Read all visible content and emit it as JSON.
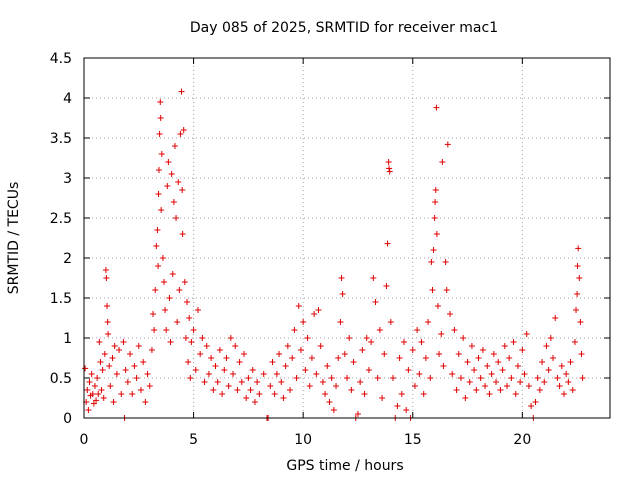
{
  "chart_data": {
    "type": "scatter",
    "title": "Day 085 of 2025, SRMTID for receiver mac1",
    "xlabel": "GPS time / hours",
    "ylabel": "SRMTID / TECUs",
    "xlim": [
      0,
      24
    ],
    "ylim": [
      0,
      4.5
    ],
    "xticks": [
      0,
      5,
      10,
      15,
      20
    ],
    "xtick_labels": [
      "0",
      "5",
      "10",
      "15",
      "20"
    ],
    "yticks": [
      0,
      0.5,
      1,
      1.5,
      2,
      2.5,
      3,
      3.5,
      4,
      4.5
    ],
    "ytick_labels": [
      "0",
      "0.5",
      "1",
      "1.5",
      "2",
      "2.5",
      "3",
      "3.5",
      "4",
      "4.5"
    ],
    "grid": true,
    "marker": "+",
    "color": "#e00000",
    "series": [
      {
        "name": "SRMTID",
        "points": [
          [
            0.05,
            0.62
          ],
          [
            0.1,
            0.2
          ],
          [
            0.15,
            0.35
          ],
          [
            0.2,
            0.1
          ],
          [
            0.25,
            0.45
          ],
          [
            0.3,
            0.28
          ],
          [
            0.35,
            0.55
          ],
          [
            0.4,
            0.3
          ],
          [
            0.45,
            0.18
          ],
          [
            0.5,
            0.4
          ],
          [
            0.55,
            0.22
          ],
          [
            0.6,
            0.5
          ],
          [
            0.65,
            0.3
          ],
          [
            0.7,
            0.95
          ],
          [
            0.75,
            0.7
          ],
          [
            0.8,
            0.35
          ],
          [
            0.85,
            0.6
          ],
          [
            0.9,
            0.25
          ],
          [
            0.95,
            0.8
          ],
          [
            1.0,
            1.85
          ],
          [
            1.02,
            1.75
          ],
          [
            1.05,
            1.4
          ],
          [
            1.08,
            1.2
          ],
          [
            1.1,
            1.05
          ],
          [
            1.15,
            0.65
          ],
          [
            1.2,
            0.4
          ],
          [
            1.3,
            0.75
          ],
          [
            1.35,
            0.2
          ],
          [
            1.4,
            0.9
          ],
          [
            1.5,
            0.55
          ],
          [
            1.6,
            0.85
          ],
          [
            1.7,
            0.3
          ],
          [
            1.8,
            0.95
          ],
          [
            1.85,
            0.0
          ],
          [
            1.9,
            0.6
          ],
          [
            2.0,
            0.45
          ],
          [
            2.1,
            0.8
          ],
          [
            2.2,
            0.3
          ],
          [
            2.3,
            0.65
          ],
          [
            2.4,
            0.5
          ],
          [
            2.5,
            0.9
          ],
          [
            2.6,
            0.35
          ],
          [
            2.7,
            0.7
          ],
          [
            2.8,
            0.2
          ],
          [
            2.9,
            0.55
          ],
          [
            3.0,
            0.4
          ],
          [
            3.1,
            0.85
          ],
          [
            3.15,
            1.3
          ],
          [
            3.2,
            1.1
          ],
          [
            3.25,
            1.6
          ],
          [
            3.3,
            2.15
          ],
          [
            3.35,
            2.35
          ],
          [
            3.38,
            1.9
          ],
          [
            3.4,
            2.8
          ],
          [
            3.42,
            3.1
          ],
          [
            3.45,
            3.55
          ],
          [
            3.48,
            3.95
          ],
          [
            3.5,
            3.75
          ],
          [
            3.52,
            2.6
          ],
          [
            3.55,
            3.3
          ],
          [
            3.6,
            2.0
          ],
          [
            3.65,
            1.7
          ],
          [
            3.7,
            1.35
          ],
          [
            3.75,
            1.1
          ],
          [
            3.8,
            2.9
          ],
          [
            3.85,
            3.2
          ],
          [
            3.9,
            1.5
          ],
          [
            3.95,
            0.95
          ],
          [
            4.0,
            3.05
          ],
          [
            4.05,
            1.8
          ],
          [
            4.1,
            2.7
          ],
          [
            4.15,
            3.4
          ],
          [
            4.2,
            2.5
          ],
          [
            4.25,
            1.2
          ],
          [
            4.3,
            2.95
          ],
          [
            4.35,
            1.6
          ],
          [
            4.4,
            3.55
          ],
          [
            4.45,
            4.08
          ],
          [
            4.48,
            2.85
          ],
          [
            4.5,
            2.3
          ],
          [
            4.55,
            3.6
          ],
          [
            4.6,
            1.7
          ],
          [
            4.65,
            1.0
          ],
          [
            4.7,
            1.45
          ],
          [
            4.75,
            0.7
          ],
          [
            4.8,
            1.25
          ],
          [
            4.85,
            0.5
          ],
          [
            4.9,
            0.95
          ],
          [
            5.0,
            1.1
          ],
          [
            5.1,
            0.6
          ],
          [
            5.2,
            1.35
          ],
          [
            5.3,
            0.8
          ],
          [
            5.4,
            1.0
          ],
          [
            5.5,
            0.45
          ],
          [
            5.6,
            0.9
          ],
          [
            5.7,
            0.55
          ],
          [
            5.8,
            0.75
          ],
          [
            5.9,
            0.35
          ],
          [
            6.0,
            0.65
          ],
          [
            6.1,
            0.45
          ],
          [
            6.2,
            0.85
          ],
          [
            6.3,
            0.3
          ],
          [
            6.4,
            0.6
          ],
          [
            6.5,
            0.75
          ],
          [
            6.6,
            0.4
          ],
          [
            6.7,
            1.0
          ],
          [
            6.8,
            0.55
          ],
          [
            6.9,
            0.9
          ],
          [
            7.0,
            0.35
          ],
          [
            7.1,
            0.7
          ],
          [
            7.2,
            0.45
          ],
          [
            7.3,
            0.8
          ],
          [
            7.4,
            0.25
          ],
          [
            7.5,
            0.5
          ],
          [
            7.6,
            0.35
          ],
          [
            7.7,
            0.6
          ],
          [
            7.8,
            0.2
          ],
          [
            7.9,
            0.45
          ],
          [
            8.0,
            0.3
          ],
          [
            8.2,
            0.55
          ],
          [
            8.35,
            0.0
          ],
          [
            8.4,
            0.0
          ],
          [
            8.5,
            0.4
          ],
          [
            8.6,
            0.7
          ],
          [
            8.7,
            0.3
          ],
          [
            8.8,
            0.55
          ],
          [
            8.9,
            0.8
          ],
          [
            9.0,
            0.45
          ],
          [
            9.1,
            0.25
          ],
          [
            9.2,
            0.65
          ],
          [
            9.3,
            0.9
          ],
          [
            9.4,
            0.35
          ],
          [
            9.5,
            0.75
          ],
          [
            9.6,
            1.1
          ],
          [
            9.7,
            0.5
          ],
          [
            9.8,
            1.4
          ],
          [
            9.9,
            0.85
          ],
          [
            10.0,
            1.2
          ],
          [
            10.1,
            0.6
          ],
          [
            10.2,
            1.0
          ],
          [
            10.3,
            0.4
          ],
          [
            10.4,
            0.75
          ],
          [
            10.5,
            1.3
          ],
          [
            10.6,
            0.55
          ],
          [
            10.7,
            1.35
          ],
          [
            10.8,
            0.9
          ],
          [
            10.9,
            0.45
          ],
          [
            11.0,
            0.3
          ],
          [
            11.1,
            0.65
          ],
          [
            11.2,
            0.2
          ],
          [
            11.3,
            0.5
          ],
          [
            11.4,
            0.1
          ],
          [
            11.5,
            0.4
          ],
          [
            11.6,
            0.75
          ],
          [
            11.7,
            1.2
          ],
          [
            11.75,
            1.75
          ],
          [
            11.8,
            1.55
          ],
          [
            11.9,
            0.8
          ],
          [
            12.0,
            0.5
          ],
          [
            12.1,
            1.0
          ],
          [
            12.2,
            0.35
          ],
          [
            12.3,
            0.7
          ],
          [
            12.4,
            0.0
          ],
          [
            12.5,
            0.05
          ],
          [
            12.6,
            0.45
          ],
          [
            12.7,
            0.85
          ],
          [
            12.8,
            0.3
          ],
          [
            12.9,
            1.0
          ],
          [
            13.0,
            0.6
          ],
          [
            13.1,
            0.95
          ],
          [
            13.2,
            1.75
          ],
          [
            13.3,
            1.45
          ],
          [
            13.4,
            0.5
          ],
          [
            13.5,
            1.1
          ],
          [
            13.6,
            0.25
          ],
          [
            13.7,
            0.8
          ],
          [
            13.8,
            1.65
          ],
          [
            13.85,
            2.18
          ],
          [
            13.9,
            3.2
          ],
          [
            13.92,
            3.12
          ],
          [
            13.95,
            3.08
          ],
          [
            14.0,
            1.2
          ],
          [
            14.1,
            0.5
          ],
          [
            14.2,
            0.0
          ],
          [
            14.3,
            0.15
          ],
          [
            14.4,
            0.75
          ],
          [
            14.5,
            0.3
          ],
          [
            14.6,
            0.95
          ],
          [
            14.7,
            0.1
          ],
          [
            14.8,
            0.6
          ],
          [
            14.9,
            0.0
          ],
          [
            15.0,
            0.85
          ],
          [
            15.1,
            0.4
          ],
          [
            15.2,
            1.1
          ],
          [
            15.3,
            0.55
          ],
          [
            15.4,
            0.95
          ],
          [
            15.5,
            0.3
          ],
          [
            15.6,
            0.75
          ],
          [
            15.7,
            1.2
          ],
          [
            15.8,
            0.5
          ],
          [
            15.85,
            1.95
          ],
          [
            15.9,
            1.6
          ],
          [
            15.95,
            2.1
          ],
          [
            16.0,
            2.5
          ],
          [
            16.02,
            2.7
          ],
          [
            16.05,
            2.85
          ],
          [
            16.08,
            3.88
          ],
          [
            16.1,
            2.3
          ],
          [
            16.15,
            1.4
          ],
          [
            16.2,
            0.8
          ],
          [
            16.3,
            1.05
          ],
          [
            16.35,
            3.2
          ],
          [
            16.4,
            0.65
          ],
          [
            16.5,
            1.95
          ],
          [
            16.55,
            1.6
          ],
          [
            16.6,
            3.42
          ],
          [
            16.7,
            1.3
          ],
          [
            16.8,
            0.55
          ],
          [
            16.9,
            1.1
          ],
          [
            17.0,
            0.35
          ],
          [
            17.1,
            0.8
          ],
          [
            17.2,
            0.5
          ],
          [
            17.3,
            1.0
          ],
          [
            17.4,
            0.25
          ],
          [
            17.5,
            0.7
          ],
          [
            17.6,
            0.45
          ],
          [
            17.7,
            0.9
          ],
          [
            17.8,
            0.6
          ],
          [
            17.9,
            0.35
          ],
          [
            18.0,
            0.75
          ],
          [
            18.1,
            0.5
          ],
          [
            18.2,
            0.85
          ],
          [
            18.3,
            0.4
          ],
          [
            18.4,
            0.65
          ],
          [
            18.5,
            0.3
          ],
          [
            18.6,
            0.55
          ],
          [
            18.7,
            0.8
          ],
          [
            18.8,
            0.45
          ],
          [
            18.9,
            0.7
          ],
          [
            19.0,
            0.35
          ],
          [
            19.1,
            0.6
          ],
          [
            19.2,
            0.9
          ],
          [
            19.3,
            0.4
          ],
          [
            19.4,
            0.75
          ],
          [
            19.5,
            0.5
          ],
          [
            19.6,
            0.95
          ],
          [
            19.7,
            0.3
          ],
          [
            19.8,
            0.65
          ],
          [
            19.9,
            0.45
          ],
          [
            20.0,
            0.85
          ],
          [
            20.1,
            0.55
          ],
          [
            20.2,
            1.05
          ],
          [
            20.3,
            0.4
          ],
          [
            20.4,
            0.15
          ],
          [
            20.5,
            0.0
          ],
          [
            20.6,
            0.2
          ],
          [
            20.7,
            0.5
          ],
          [
            20.8,
            0.35
          ],
          [
            20.9,
            0.7
          ],
          [
            21.0,
            0.45
          ],
          [
            21.1,
            0.9
          ],
          [
            21.2,
            0.6
          ],
          [
            21.3,
            1.0
          ],
          [
            21.4,
            0.75
          ],
          [
            21.5,
            1.25
          ],
          [
            21.6,
            0.5
          ],
          [
            21.7,
            0.4
          ],
          [
            21.8,
            0.65
          ],
          [
            21.9,
            0.3
          ],
          [
            22.0,
            0.55
          ],
          [
            22.1,
            0.45
          ],
          [
            22.2,
            0.7
          ],
          [
            22.3,
            0.35
          ],
          [
            22.4,
            0.95
          ],
          [
            22.45,
            1.35
          ],
          [
            22.5,
            1.55
          ],
          [
            22.52,
            1.9
          ],
          [
            22.55,
            2.12
          ],
          [
            22.6,
            1.75
          ],
          [
            22.65,
            1.2
          ],
          [
            22.7,
            0.8
          ],
          [
            22.75,
            0.5
          ]
        ]
      }
    ]
  }
}
